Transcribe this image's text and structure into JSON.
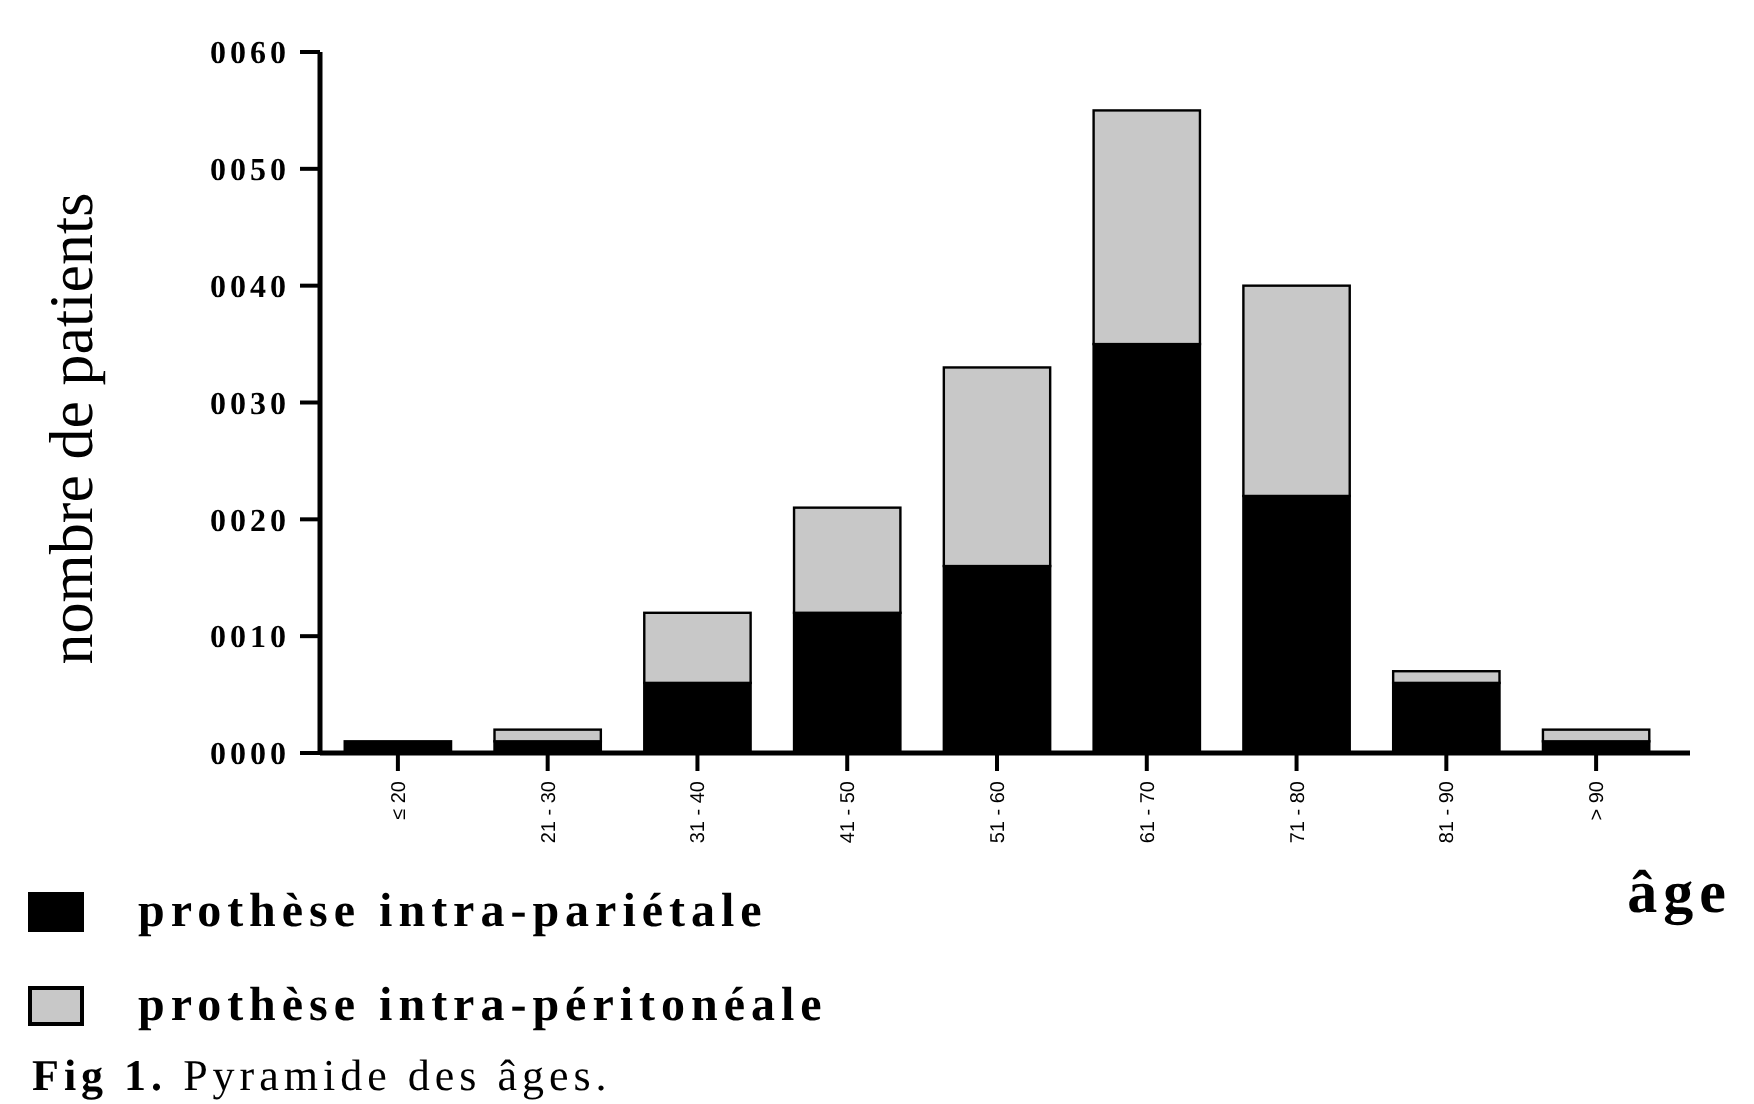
{
  "chart_data": {
    "type": "bar",
    "stacked": true,
    "categories": [
      "≤ 20",
      "21 - 30",
      "31 - 40",
      "41 - 50",
      "51 - 60",
      "61 - 70",
      "71 - 80",
      "81 - 90",
      "> 90"
    ],
    "series": [
      {
        "name": "prothèse intra-pariétale",
        "color": "#000000",
        "values": [
          1,
          1,
          6,
          12,
          16,
          35,
          22,
          6,
          1
        ]
      },
      {
        "name": "prothèse intra-péritonéale",
        "color": "#c8c8c8",
        "values": [
          0,
          1,
          6,
          9,
          17,
          20,
          18,
          1,
          1
        ]
      }
    ],
    "ylim": [
      0,
      60
    ],
    "yticks": [
      {
        "value": 0,
        "label": "0000"
      },
      {
        "value": 10,
        "label": "0010"
      },
      {
        "value": 20,
        "label": "0020"
      },
      {
        "value": 30,
        "label": "0030"
      },
      {
        "value": 40,
        "label": "0040"
      },
      {
        "value": 50,
        "label": "0050"
      },
      {
        "value": 60,
        "label": "0060"
      }
    ],
    "ylabel": "nombre de patients",
    "xlabel": "âge",
    "legend": "bottom left",
    "annotations": [
      "Fig 1. Pyramide des âges."
    ]
  }
}
